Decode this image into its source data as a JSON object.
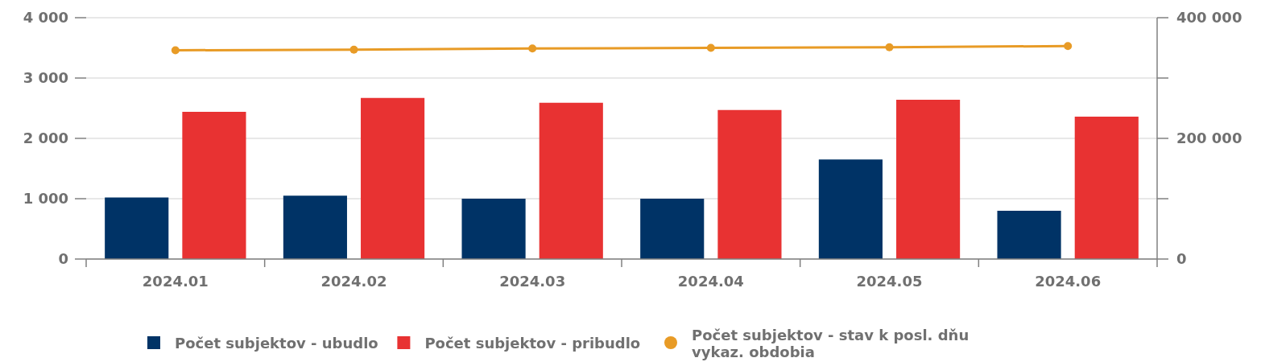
{
  "chart_data": {
    "type": "bar",
    "categories": [
      "2024.01",
      "2024.02",
      "2024.03",
      "2024.04",
      "2024.05",
      "2024.06"
    ],
    "series": [
      {
        "name": "Počet subjektov - ubudlo",
        "color": "#003366",
        "values": [
          1020,
          1050,
          1000,
          1000,
          1650,
          800
        ]
      },
      {
        "name": "Počet subjektov - pribudlo",
        "color": "#e83232",
        "values": [
          2440,
          2670,
          2590,
          2470,
          2640,
          2360
        ]
      },
      {
        "name": "Počet subjektov - stav k posl. dňu vykaz. obdobia",
        "type": "line",
        "axis": "y2",
        "color": "#e89b26",
        "marker": "circle",
        "values": [
          346000,
          347000,
          349000,
          350000,
          351000,
          353000
        ]
      }
    ],
    "ylim": [
      0,
      4000
    ],
    "yticks": [
      {
        "value": 0,
        "label": "0"
      },
      {
        "value": 1000,
        "label": "1 000"
      },
      {
        "value": 2000,
        "label": "2 000"
      },
      {
        "value": 3000,
        "label": "3 000"
      },
      {
        "value": 4000,
        "label": "4 000"
      }
    ],
    "y2lim": [
      0,
      400000
    ],
    "y2ticks": [
      {
        "value": 0,
        "label": "0"
      },
      {
        "value": 100000,
        "label": null
      },
      {
        "value": 200000,
        "label": "200 000"
      },
      {
        "value": 300000,
        "label": null
      },
      {
        "value": 400000,
        "label": "400 000"
      }
    ],
    "grid": "y",
    "legend": "bottom"
  }
}
